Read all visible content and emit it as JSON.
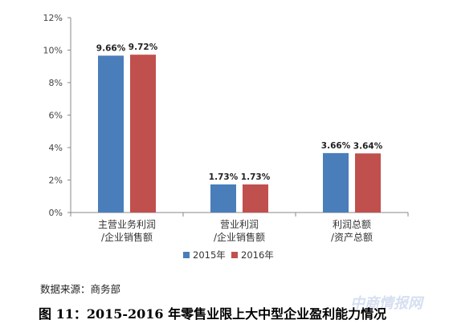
{
  "chart_data": {
    "type": "bar",
    "categories": [
      [
        "主营业务利润",
        "/企业销售额"
      ],
      [
        "营业利润",
        "/企业销售额"
      ],
      [
        "利润总额",
        "/资产总额"
      ]
    ],
    "series": [
      {
        "name": "2015年",
        "color": "#4a7ebb",
        "values": [
          9.66,
          1.73,
          3.66
        ]
      },
      {
        "name": "2016年",
        "color": "#c0504d",
        "values": [
          9.72,
          1.73,
          3.64
        ]
      }
    ],
    "value_labels": [
      [
        "9.66%",
        "1.73%",
        "3.66%"
      ],
      [
        "9.72%",
        "1.73%",
        "3.64%"
      ]
    ],
    "yticks": [
      "0%",
      "2%",
      "4%",
      "6%",
      "8%",
      "10%",
      "12%"
    ],
    "ylim": [
      0,
      12
    ],
    "legend_position": "bottom"
  },
  "source_text": "数据来源：商务部",
  "caption": "图 11：2015-2016 年零售业限上大中型企业盈利能力情况",
  "watermark": "中商情报网"
}
